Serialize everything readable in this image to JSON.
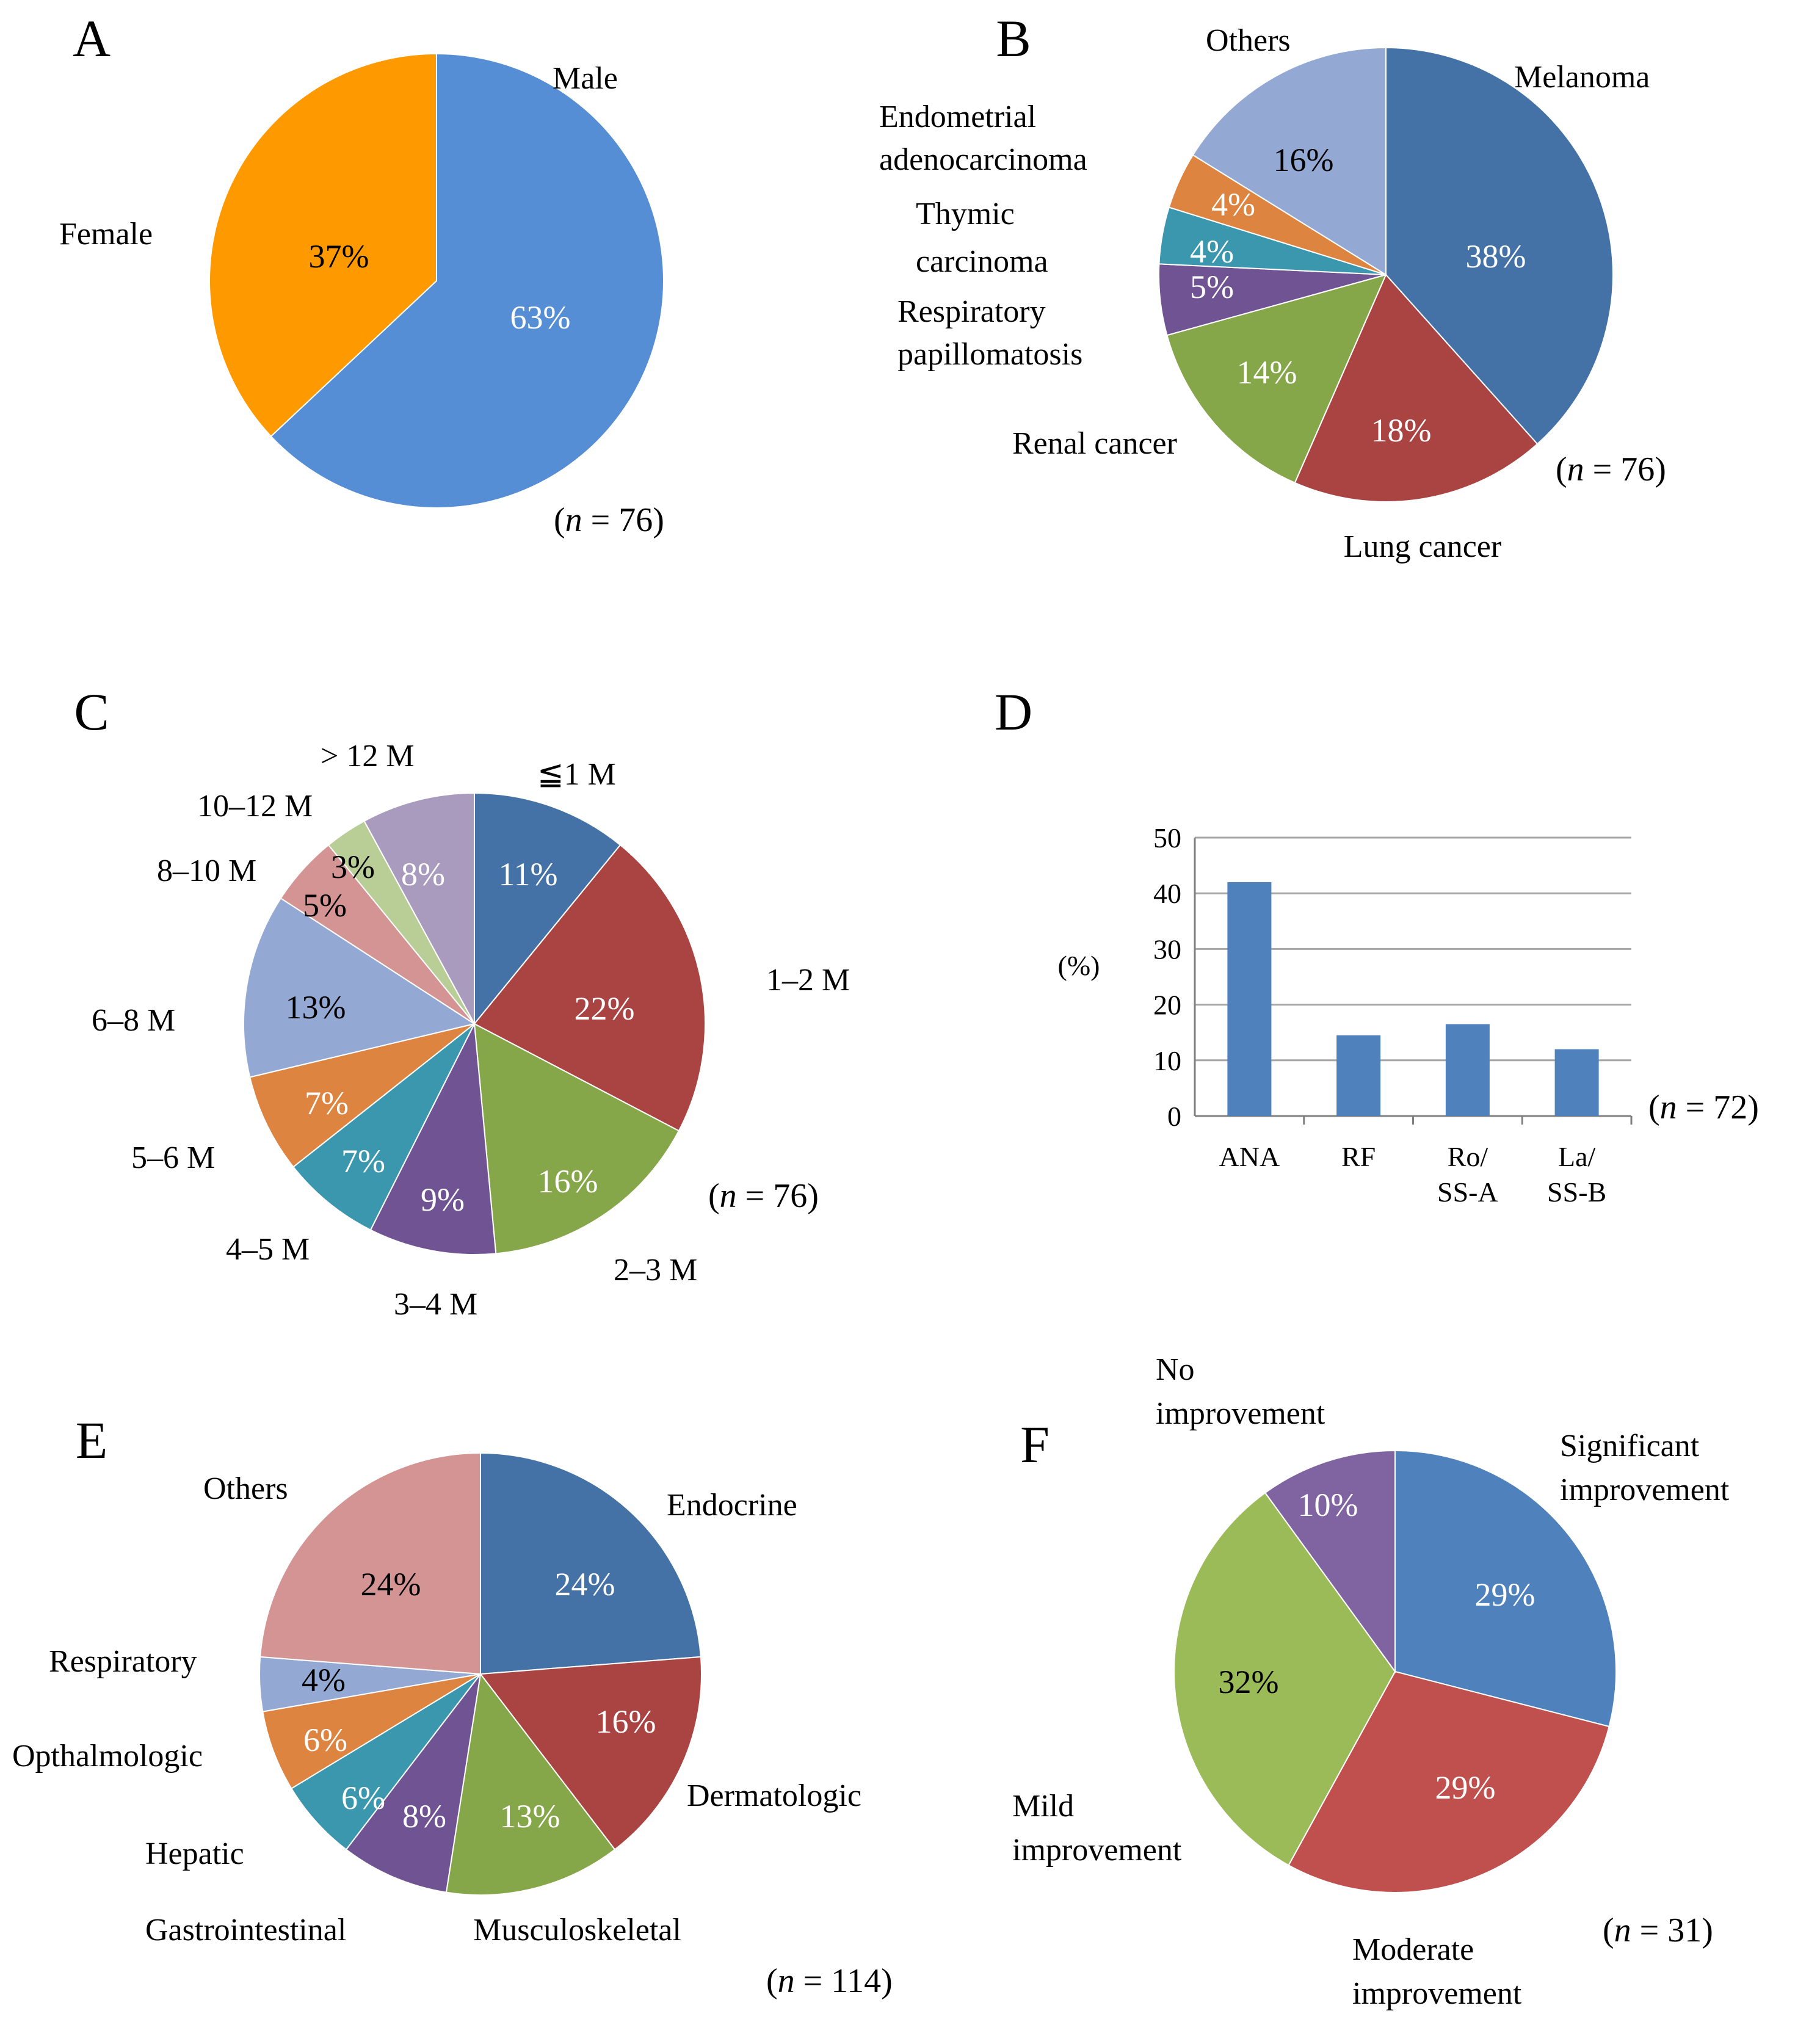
{
  "chart_data": [
    {
      "panel": "A",
      "type": "pie",
      "n_label": "(n = 76)",
      "slices": [
        {
          "label": "Male",
          "value": 63,
          "value_label": "63%",
          "color": "#558ED5",
          "text_color": "#ffffff"
        },
        {
          "label": "Female",
          "value": 37,
          "value_label": "37%",
          "color": "#FF9900",
          "text_color": "#000000"
        }
      ]
    },
    {
      "panel": "B",
      "type": "pie",
      "n_label": "(n = 76)",
      "slices": [
        {
          "label": "Melanoma",
          "value": 38,
          "value_label": "38%",
          "color": "#4472A6",
          "text_color": "#ffffff"
        },
        {
          "label": "Lung cancer",
          "value": 18,
          "value_label": "18%",
          "color": "#A94442",
          "text_color": "#ffffff"
        },
        {
          "label": "Renal cancer",
          "value": 14,
          "value_label": "14%",
          "color": "#86A64A",
          "text_color": "#ffffff"
        },
        {
          "label": "Respiratory papillomatosis",
          "value": 5,
          "value_label": "5%",
          "color": "#6F5393",
          "text_color": "#ffffff"
        },
        {
          "label": "Thymic carcinoma",
          "value": 4,
          "value_label": "4%",
          "color": "#3B97AE",
          "text_color": "#ffffff"
        },
        {
          "label": "Endometrial adenocarcinoma",
          "value": 4,
          "value_label": "4%",
          "color": "#DD8440",
          "text_color": "#ffffff"
        },
        {
          "label": "Others",
          "value": 16,
          "value_label": "16%",
          "color": "#93A9D3",
          "text_color": "#000000"
        }
      ]
    },
    {
      "panel": "C",
      "type": "pie",
      "n_label": "(n = 76)",
      "slices": [
        {
          "label": "≦1 M",
          "value": 11,
          "value_label": "11%",
          "color": "#4472A6",
          "text_color": "#ffffff"
        },
        {
          "label": "1–2 M",
          "value": 22,
          "value_label": "22%",
          "color": "#A94442",
          "text_color": "#ffffff"
        },
        {
          "label": "2–3 M",
          "value": 16,
          "value_label": "16%",
          "color": "#86A64A",
          "text_color": "#ffffff"
        },
        {
          "label": "3–4 M",
          "value": 9,
          "value_label": "9%",
          "color": "#6F5393",
          "text_color": "#ffffff"
        },
        {
          "label": "4–5 M",
          "value": 7,
          "value_label": "7%",
          "color": "#3B97AE",
          "text_color": "#ffffff"
        },
        {
          "label": "5–6 M",
          "value": 7,
          "value_label": "7%",
          "color": "#DD8440",
          "text_color": "#ffffff"
        },
        {
          "label": "6–8 M",
          "value": 13,
          "value_label": "13%",
          "color": "#93A9D3",
          "text_color": "#000000"
        },
        {
          "label": "8–10 M",
          "value": 5,
          "value_label": "5%",
          "color": "#D49493",
          "text_color": "#000000"
        },
        {
          "label": "10–12 M",
          "value": 3,
          "value_label": "3%",
          "color": "#B9CD96",
          "text_color": "#000000"
        },
        {
          "label": "> 12 M",
          "value": 8,
          "value_label": "8%",
          "color": "#A99BBD",
          "text_color": "#ffffff"
        }
      ]
    },
    {
      "panel": "D",
      "type": "bar",
      "ylabel": "(%)",
      "ylim": [
        0,
        50
      ],
      "yticks": [
        0,
        10,
        20,
        30,
        40,
        50
      ],
      "grid": true,
      "n_label": "(n = 72)",
      "categories": [
        [
          "ANA"
        ],
        [
          "RF"
        ],
        [
          "Ro/",
          "SS-A"
        ],
        [
          "La/",
          "SS-B"
        ]
      ],
      "values": [
        42,
        14.5,
        16.5,
        12
      ],
      "color": "#4F81BD"
    },
    {
      "panel": "E",
      "type": "pie",
      "n_label": "(n = 114)",
      "slices": [
        {
          "label": "Endocrine",
          "value": 24,
          "value_label": "24%",
          "color": "#4472A6",
          "text_color": "#ffffff"
        },
        {
          "label": "Dermatologic",
          "value": 16,
          "value_label": "16%",
          "color": "#A94442",
          "text_color": "#ffffff"
        },
        {
          "label": "Musculoskeletal",
          "value": 13,
          "value_label": "13%",
          "color": "#86A64A",
          "text_color": "#ffffff"
        },
        {
          "label": "Gastrointestinal",
          "value": 8,
          "value_label": "8%",
          "color": "#6F5393",
          "text_color": "#ffffff"
        },
        {
          "label": "Hepatic",
          "value": 6,
          "value_label": "6%",
          "color": "#3B97AE",
          "text_color": "#ffffff"
        },
        {
          "label": "Opthalmologic",
          "value": 6,
          "value_label": "6%",
          "color": "#DD8440",
          "text_color": "#ffffff"
        },
        {
          "label": "Respiratory",
          "value": 4,
          "value_label": "4%",
          "color": "#93A9D3",
          "text_color": "#000000"
        },
        {
          "label": "Others",
          "value": 24,
          "value_label": "24%",
          "color": "#D49493",
          "text_color": "#000000"
        }
      ]
    },
    {
      "panel": "F",
      "type": "pie",
      "n_label": "(n = 31)",
      "slices": [
        {
          "label": "Significant improvement",
          "value": 29,
          "value_label": "29%",
          "color": "#4F81BD",
          "text_color": "#ffffff"
        },
        {
          "label": "Moderate improvement",
          "value": 29,
          "value_label": "29%",
          "color": "#C0504D",
          "text_color": "#ffffff"
        },
        {
          "label": "Mild improvement",
          "value": 32,
          "value_label": "32%",
          "color": "#9BBB59",
          "text_color": "#000000"
        },
        {
          "label": "No improvement",
          "value": 10,
          "value_label": "10%",
          "color": "#8064A2",
          "text_color": "#ffffff"
        }
      ]
    }
  ]
}
